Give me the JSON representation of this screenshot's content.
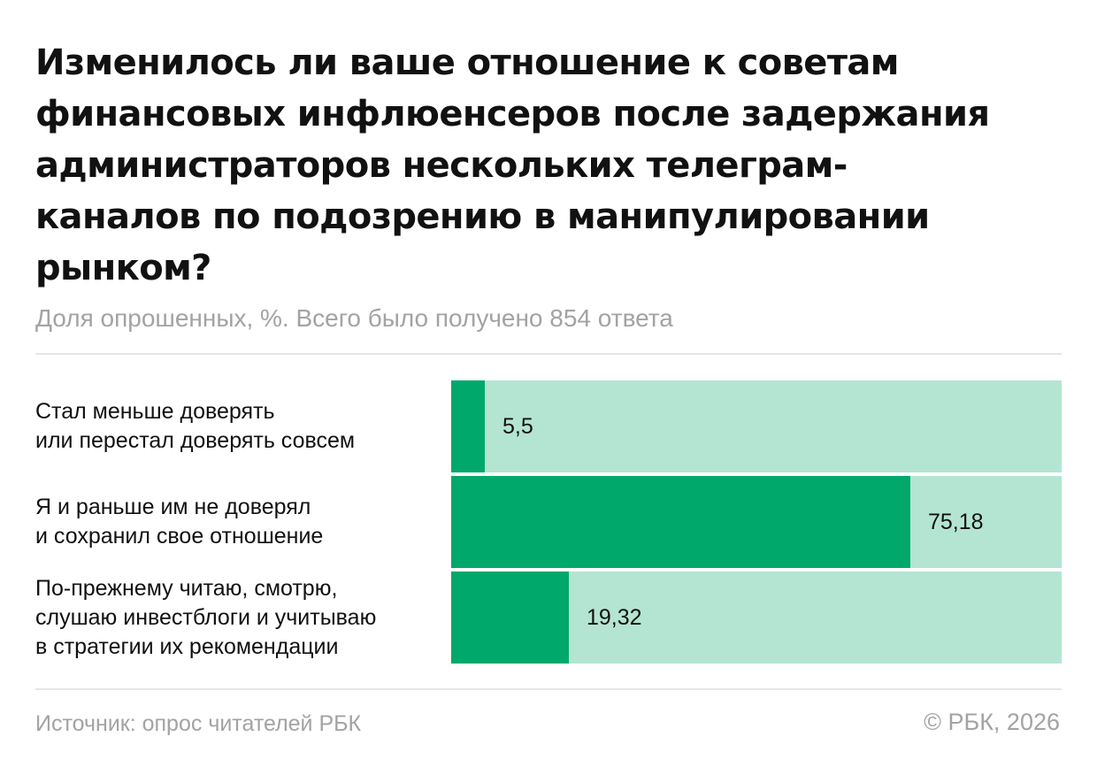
{
  "title_lines": [
    "Изменилось ли ваше отношение к советам",
    "финансовых инфлюенсеров после задержания",
    "администраторов нескольких телеграм-",
    "каналов по подозрению в манипулировании",
    "рынком?"
  ],
  "subtitle": "Доля опрошенных, %. Всего было получено 854 ответа",
  "chart_data": {
    "type": "bar",
    "orientation": "horizontal",
    "title": "Изменилось ли ваше отношение к советам финансовых инфлюенсеров после задержания администраторов нескольких телеграм-каналов по подозрению в манипулировании рынком?",
    "subtitle": "Доля опрошенных, %. Всего было получено 854 ответа",
    "categories": [
      [
        "Стал меньше доверять",
        "или перестал доверять совсем"
      ],
      [
        "Я и раньше им не доверял",
        "и сохранил свое отношение"
      ],
      [
        "По-прежнему читаю, смотрю,",
        "слушаю инвестблоги и учитываю",
        "в стратегии их рекомендации"
      ]
    ],
    "values": [
      5.5,
      75.18,
      19.32
    ],
    "value_labels": [
      "5,5",
      "75,18",
      "19,32"
    ],
    "xlim": [
      0,
      100
    ],
    "grid": false,
    "colors": {
      "bar": "#00a86b",
      "track": "#b4e5d2"
    }
  },
  "footer": {
    "source": "Источник: опрос читателей РБК",
    "copyright": "© РБК, 2026"
  }
}
